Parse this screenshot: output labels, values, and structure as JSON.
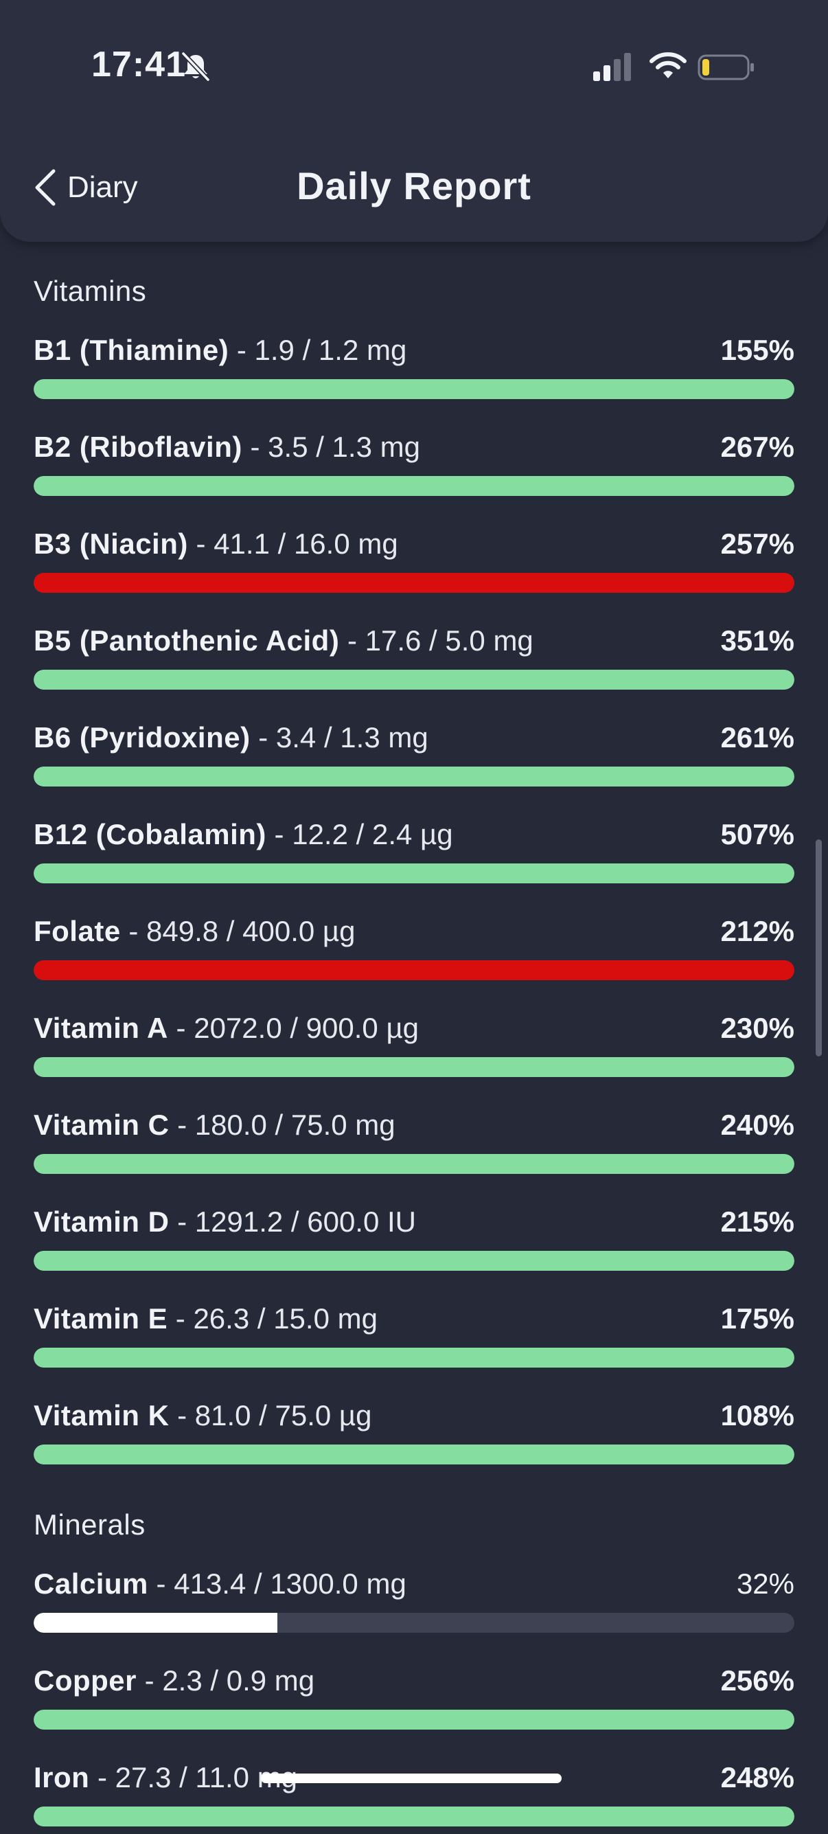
{
  "status_bar": {
    "time": "17:41",
    "icons": [
      "bell-slash-icon",
      "cellular-signal-icon",
      "wifi-icon",
      "battery-low-icon"
    ],
    "battery_color": "#f2d13b"
  },
  "header": {
    "back_label": "Diary",
    "title": "Daily Report"
  },
  "colors": {
    "ok": "#85dea0",
    "over": "#d80e0e",
    "under": "#ffffff",
    "track": "#3f4253",
    "background": "#262938"
  },
  "sections": [
    {
      "title": "Vitamins",
      "items": [
        {
          "name": "B1 (Thiamine)",
          "detail": " - 1.9 / 1.2 mg",
          "percent": "155%",
          "fill": 1.0,
          "status": "ok"
        },
        {
          "name": "B2 (Riboflavin)",
          "detail": " - 3.5 / 1.3 mg",
          "percent": "267%",
          "fill": 1.0,
          "status": "ok"
        },
        {
          "name": "B3 (Niacin)",
          "detail": " - 41.1 / 16.0 mg",
          "percent": "257%",
          "fill": 1.0,
          "status": "over"
        },
        {
          "name": "B5 (Pantothenic Acid)",
          "detail": " - 17.6 / 5.0 mg",
          "percent": "351%",
          "fill": 1.0,
          "status": "ok"
        },
        {
          "name": "B6 (Pyridoxine)",
          "detail": " - 3.4 / 1.3 mg",
          "percent": "261%",
          "fill": 1.0,
          "status": "ok"
        },
        {
          "name": "B12 (Cobalamin)",
          "detail": " - 12.2 / 2.4 µg",
          "percent": "507%",
          "fill": 1.0,
          "status": "ok"
        },
        {
          "name": "Folate",
          "detail": " - 849.8 / 400.0 µg",
          "percent": "212%",
          "fill": 1.0,
          "status": "over"
        },
        {
          "name": "Vitamin A",
          "detail": " - 2072.0 / 900.0 µg",
          "percent": "230%",
          "fill": 1.0,
          "status": "ok"
        },
        {
          "name": "Vitamin C",
          "detail": " - 180.0 / 75.0 mg",
          "percent": "240%",
          "fill": 1.0,
          "status": "ok"
        },
        {
          "name": "Vitamin D",
          "detail": " - 1291.2 / 600.0 IU",
          "percent": "215%",
          "fill": 1.0,
          "status": "ok"
        },
        {
          "name": "Vitamin E",
          "detail": " - 26.3 / 15.0 mg",
          "percent": "175%",
          "fill": 1.0,
          "status": "ok"
        },
        {
          "name": "Vitamin K",
          "detail": " - 81.0 / 75.0 µg",
          "percent": "108%",
          "fill": 1.0,
          "status": "ok"
        }
      ]
    },
    {
      "title": "Minerals",
      "items": [
        {
          "name": "Calcium",
          "detail": " - 413.4 / 1300.0 mg",
          "percent": "32%",
          "fill": 0.32,
          "status": "under"
        },
        {
          "name": "Copper",
          "detail": " - 2.3 / 0.9 mg",
          "percent": "256%",
          "fill": 1.0,
          "status": "ok"
        },
        {
          "name": "Iron",
          "detail": " - 27.3 / 11.0 mg",
          "percent": "248%",
          "fill": 1.0,
          "status": "ok"
        }
      ]
    }
  ]
}
